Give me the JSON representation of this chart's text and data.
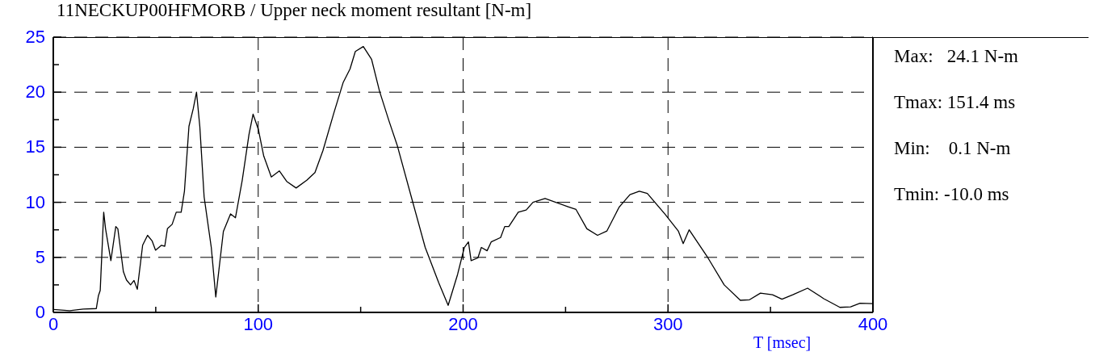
{
  "chart_data": {
    "type": "line",
    "title": "11NECKUP00HFMORB / Upper neck moment resultant [N-m]",
    "xlabel": "T [msec]",
    "annotations": [
      "Max:   24.1 N-m",
      "Tmax: 151.4 ms",
      "Min:    0.1 N-m",
      "Tmin: -10.0 ms"
    ],
    "xlim": [
      0,
      400
    ],
    "xticks": [
      0,
      {
        "value": 50,
        "label": null
      },
      100,
      {
        "value": 150,
        "label": null
      },
      200,
      {
        "value": 250,
        "label": null
      },
      300,
      {
        "value": 350,
        "label": null
      },
      400
    ],
    "ylim": [
      0,
      25
    ],
    "yticks": [
      0,
      {
        "value": 2.5,
        "label": null
      },
      5,
      {
        "value": 7.5,
        "label": null
      },
      10,
      {
        "value": 12.5,
        "label": null
      },
      15,
      {
        "value": 17.5,
        "label": null
      },
      20,
      {
        "value": 22.5,
        "label": null
      },
      25
    ],
    "grid": true,
    "legend": false,
    "marker": "none",
    "line_style": "solid",
    "series": [
      {
        "color": "#000000",
        "x": [
          0,
          8,
          14.6,
          21,
          22,
          22.9,
          24.6,
          25.5,
          28.1,
          30.5,
          31.5,
          34.2,
          35.7,
          37.7,
          39.4,
          41,
          43.6,
          46,
          48.2,
          49.9,
          52.8,
          54.4,
          55.7,
          58,
          60,
          62.4,
          64,
          66.2,
          68.3,
          69.9,
          71.5,
          73.6,
          77.1,
          79.3,
          83,
          86.5,
          88.9,
          92.2,
          95.5,
          97.5,
          100.1,
          102.7,
          106.4,
          110.3,
          113.9,
          118.5,
          123.7,
          127.7,
          131.6,
          136.9,
          141.5,
          144.8,
          147.4,
          151.3,
          155.3,
          159.2,
          163.8,
          167.8,
          175,
          181.5,
          188.1,
          192.7,
          197.3,
          200.6,
          202.6,
          203.9,
          207.2,
          208.9,
          211.7,
          213.7,
          218.3,
          220.3,
          222.3,
          226.9,
          230.8,
          234.1,
          240,
          251.2,
          255.1,
          260.4,
          265.6,
          270.2,
          276.1,
          281.4,
          286,
          289.9,
          298.4,
          305,
          307.4,
          310.3,
          319.5,
          327.4,
          335.3,
          339.8,
          345.1,
          351,
          355.6,
          360.9,
          368.1,
          376,
          383.9,
          389.1,
          393.7,
          400
        ],
        "values": [
          0.27,
          0.15,
          0.3,
          0.35,
          1.5,
          2.0,
          9.1,
          7.6,
          4.7,
          7.8,
          7.6,
          3.7,
          2.95,
          2.5,
          2.9,
          2.1,
          6.1,
          7.0,
          6.5,
          5.65,
          6.1,
          6.0,
          7.6,
          8.0,
          9.1,
          9.1,
          11.0,
          16.9,
          18.5,
          20.0,
          16.9,
          10.5,
          5.9,
          1.4,
          7.35,
          8.95,
          8.6,
          12.0,
          16.15,
          18.0,
          16.6,
          14.2,
          12.3,
          12.85,
          11.9,
          11.3,
          12.0,
          12.7,
          14.7,
          18.1,
          20.9,
          22.1,
          23.7,
          24.15,
          23.0,
          20.1,
          17.4,
          15.2,
          10.3,
          5.9,
          2.7,
          0.64,
          3.45,
          5.9,
          6.4,
          4.7,
          4.95,
          5.9,
          5.6,
          6.4,
          6.8,
          7.8,
          7.8,
          9.1,
          9.3,
          10.0,
          10.35,
          9.6,
          9.35,
          7.6,
          7.0,
          7.4,
          9.55,
          10.7,
          11.0,
          10.8,
          8.95,
          7.4,
          6.25,
          7.5,
          4.95,
          2.5,
          1.1,
          1.15,
          1.75,
          1.6,
          1.2,
          1.6,
          2.2,
          1.25,
          0.46,
          0.5,
          0.83,
          0.8
        ]
      }
    ]
  }
}
